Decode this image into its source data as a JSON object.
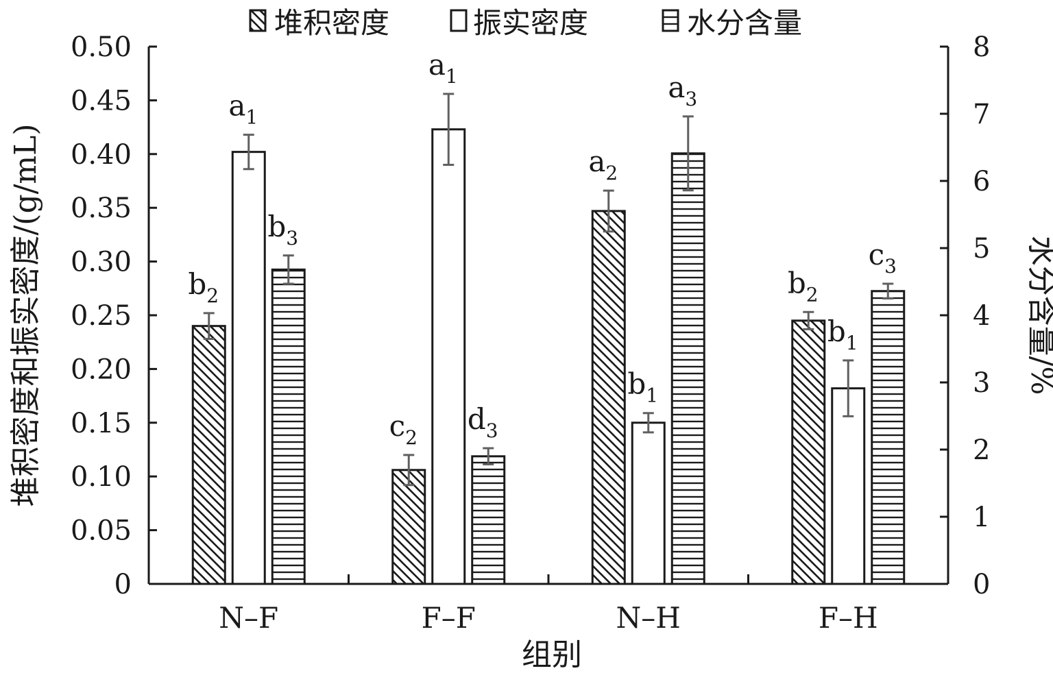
{
  "chart_data": {
    "type": "bar",
    "xlabel": "组别",
    "ylabel": "堆积密度和振实密度/(g/mL)",
    "y2label": "水分含量/%",
    "categories": [
      "N–F",
      "F–F",
      "N–H",
      "F–H"
    ],
    "ylim": [
      0,
      0.5
    ],
    "y2lim": [
      0,
      8
    ],
    "yticks": [
      "0",
      "0.05",
      "0.10",
      "0.15",
      "0.20",
      "0.25",
      "0.30",
      "0.35",
      "0.40",
      "0.45",
      "0.50"
    ],
    "y2ticks": [
      "0",
      "1",
      "2",
      "3",
      "4",
      "5",
      "6",
      "7",
      "8"
    ],
    "grid": false,
    "legend_position": "top",
    "series": [
      {
        "name": "堆积密度",
        "axis": "left",
        "pattern": "diagonal-hatch",
        "values": [
          0.24,
          0.106,
          0.347,
          0.245
        ],
        "errors": [
          0.012,
          0.014,
          0.019,
          0.008
        ],
        "labels": [
          [
            "b",
            "2"
          ],
          [
            "c",
            "2"
          ],
          [
            "a",
            "2"
          ],
          [
            "b",
            "2"
          ]
        ]
      },
      {
        "name": "振实密度",
        "axis": "left",
        "pattern": "solid-white",
        "values": [
          0.402,
          0.423,
          0.15,
          0.182
        ],
        "errors": [
          0.016,
          0.033,
          0.009,
          0.026
        ],
        "labels": [
          [
            "a",
            "1"
          ],
          [
            "a",
            "1"
          ],
          [
            "b",
            "1"
          ],
          [
            "b",
            "1"
          ]
        ]
      },
      {
        "name": "水分含量",
        "axis": "right",
        "pattern": "horizontal-lines",
        "values": [
          4.68,
          1.9,
          6.41,
          4.36
        ],
        "errors": [
          0.21,
          0.12,
          0.55,
          0.11
        ],
        "labels": [
          [
            "b",
            "3"
          ],
          [
            "d",
            "3"
          ],
          [
            "a",
            "3"
          ],
          [
            "c",
            "3"
          ]
        ]
      }
    ],
    "colors": {
      "axis": "#1a1a1a",
      "errorbar": "#606060",
      "bar_fill": "#ffffff"
    }
  }
}
